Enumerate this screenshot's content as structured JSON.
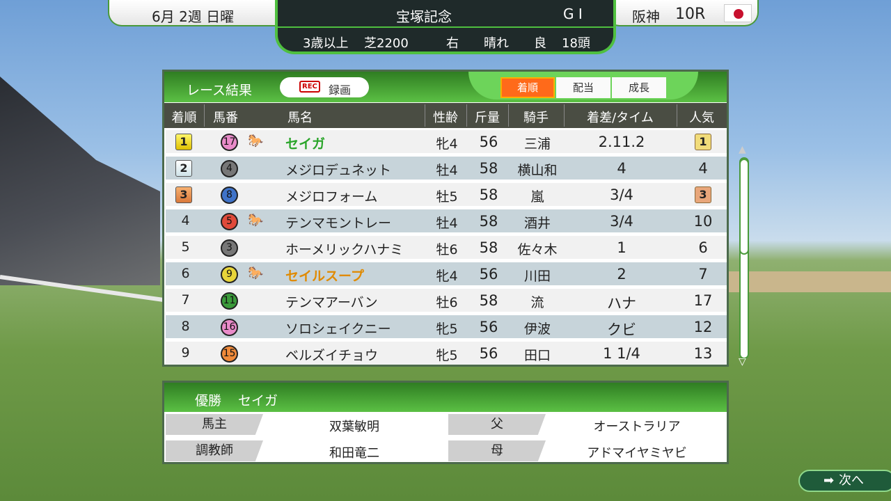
{
  "header": {
    "date": "6月 2週 日曜",
    "race_name": "宝塚記念",
    "grade": "G I",
    "course": "阪神",
    "race_no": "10R",
    "conditions": [
      "3歳以上",
      "芝2200",
      "右",
      "晴れ",
      "良",
      "18頭"
    ]
  },
  "results": {
    "title": "レース結果",
    "record_label": "録画",
    "record_icon": "REC",
    "tabs": [
      "着順",
      "配当",
      "成長"
    ],
    "active_tab": 0,
    "columns": [
      "着順",
      "馬番",
      "馬名",
      "性齢",
      "斤量",
      "騎手",
      "着差/タイム",
      "人気"
    ],
    "rows": [
      {
        "rank": "1",
        "num": "17",
        "num_color": "#e98bc9",
        "fav": true,
        "name": "セイガ",
        "name_color": "#2aa52a",
        "sexage": "牝4",
        "weight": "56",
        "jockey": "三浦",
        "margin": "2.11.2",
        "pop": "1"
      },
      {
        "rank": "2",
        "num": "4",
        "num_color": "#777777",
        "fav": false,
        "name": "メジロデュネット",
        "name_color": "#222222",
        "sexage": "牡4",
        "weight": "58",
        "jockey": "横山和",
        "margin": "4",
        "pop": "4"
      },
      {
        "rank": "3",
        "num": "8",
        "num_color": "#3f73c9",
        "fav": false,
        "name": "メジロフォーム",
        "name_color": "#222222",
        "sexage": "牡5",
        "weight": "58",
        "jockey": "嵐",
        "margin": "3/4",
        "pop": "3"
      },
      {
        "rank": "4",
        "num": "5",
        "num_color": "#e04a3a",
        "fav": true,
        "name": "テンマモントレー",
        "name_color": "#222222",
        "sexage": "牡4",
        "weight": "58",
        "jockey": "酒井",
        "margin": "3/4",
        "pop": "10"
      },
      {
        "rank": "5",
        "num": "3",
        "num_color": "#777777",
        "fav": false,
        "name": "ホーメリックハナミ",
        "name_color": "#222222",
        "sexage": "牡6",
        "weight": "58",
        "jockey": "佐々木",
        "margin": "1",
        "pop": "6"
      },
      {
        "rank": "6",
        "num": "9",
        "num_color": "#e8d53a",
        "fav": true,
        "name": "セイルスープ",
        "name_color": "#e08a00",
        "sexage": "牝4",
        "weight": "56",
        "jockey": "川田",
        "margin": "2",
        "pop": "7"
      },
      {
        "rank": "7",
        "num": "11",
        "num_color": "#3a9a3a",
        "fav": false,
        "name": "テンマアーバン",
        "name_color": "#222222",
        "sexage": "牡6",
        "weight": "58",
        "jockey": "流",
        "margin": "ハナ",
        "pop": "17"
      },
      {
        "rank": "8",
        "num": "16",
        "num_color": "#e98bc9",
        "fav": false,
        "name": "ソロシェイクニー",
        "name_color": "#222222",
        "sexage": "牝5",
        "weight": "56",
        "jockey": "伊波",
        "margin": "クビ",
        "pop": "12"
      },
      {
        "rank": "9",
        "num": "15",
        "num_color": "#f08a3a",
        "fav": false,
        "name": "ベルズイチョウ",
        "name_color": "#222222",
        "sexage": "牝5",
        "weight": "56",
        "jockey": "田口",
        "margin": "1 1/4",
        "pop": "13"
      }
    ]
  },
  "winner": {
    "label": "優勝",
    "name": "セイガ",
    "owner_label": "馬主",
    "owner": "双葉敏明",
    "trainer_label": "調教師",
    "trainer": "和田竜二",
    "sire_label": "父",
    "sire": "オーストラリア",
    "dam_label": "母",
    "dam": "アドマイヤミヤビ"
  },
  "next_label": "次へ"
}
